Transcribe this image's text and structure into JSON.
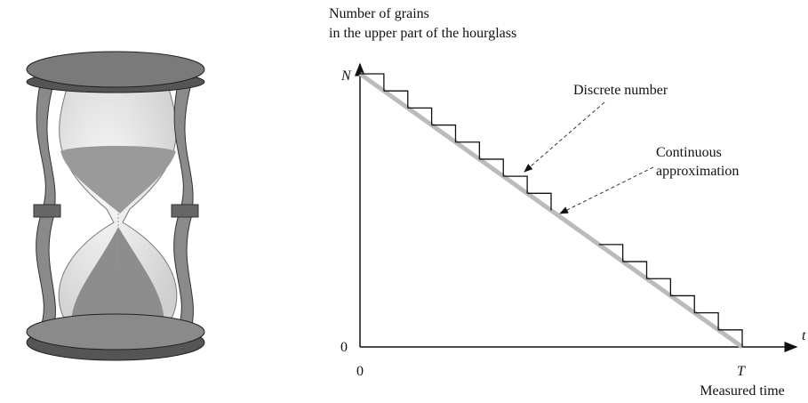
{
  "y_axis_label": [
    "Number of grains",
    "in the upper part of the hourglass"
  ],
  "y_max_label": "N",
  "y_zero_label": "0",
  "x_zero_label": "0",
  "x_end_label": "T",
  "x_axis_symbol": "t",
  "x_axis_label": "Measured time",
  "annotations": [
    {
      "label": [
        "Discrete number"
      ]
    },
    {
      "label": [
        "Continuous",
        "approximation"
      ]
    }
  ]
}
